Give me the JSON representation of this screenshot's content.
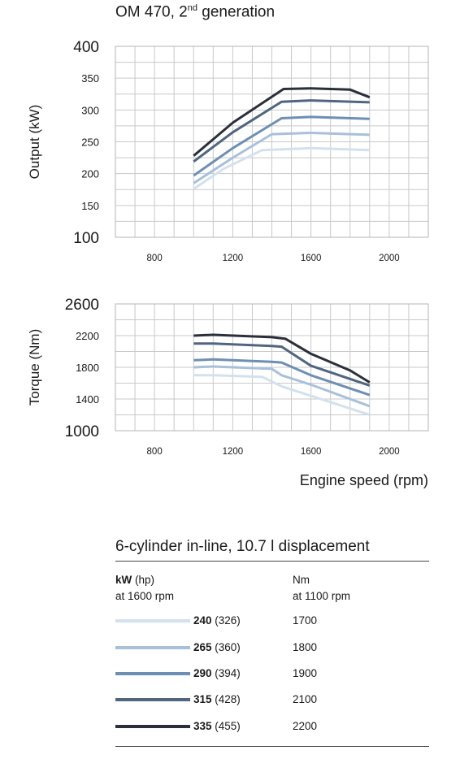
{
  "title": {
    "main": "OM 470, 2",
    "sup": "nd",
    "rest": " generation"
  },
  "chart_data": [
    {
      "type": "line",
      "ylabel": "Output (kW)",
      "xlabel": "",
      "xlim": [
        600,
        2200
      ],
      "ylim": [
        100,
        400
      ],
      "xticks": [
        800,
        1200,
        1600,
        2000
      ],
      "yticks": [
        100,
        150,
        200,
        250,
        300,
        350,
        400
      ],
      "grid": true,
      "series": [
        {
          "name": "240 (326)",
          "x": [
            1000,
            1150,
            1350,
            1600,
            1900
          ],
          "y": [
            176,
            207,
            237,
            240,
            237
          ],
          "color": "#d3e1ee"
        },
        {
          "name": "265 (360)",
          "x": [
            1000,
            1200,
            1400,
            1600,
            1900
          ],
          "y": [
            185,
            225,
            262,
            264,
            261
          ],
          "color": "#a8c0da"
        },
        {
          "name": "290 (394)",
          "x": [
            1000,
            1200,
            1450,
            1600,
            1900
          ],
          "y": [
            197,
            240,
            287,
            289,
            286
          ],
          "color": "#6e8fb4"
        },
        {
          "name": "315 (428)",
          "x": [
            1000,
            1200,
            1450,
            1600,
            1900
          ],
          "y": [
            219,
            265,
            313,
            315,
            312
          ],
          "color": "#50657f"
        },
        {
          "name": "335 (455)",
          "x": [
            1000,
            1200,
            1460,
            1600,
            1800,
            1900
          ],
          "y": [
            228,
            280,
            333,
            334,
            332,
            320
          ],
          "color": "#2a2f3a"
        }
      ]
    },
    {
      "type": "line",
      "ylabel": "Torque (Nm)",
      "xlabel": "Engine speed (rpm)",
      "xlim": [
        600,
        2200
      ],
      "ylim": [
        1000,
        2600
      ],
      "xticks": [
        800,
        1200,
        1600,
        2000
      ],
      "yticks": [
        1000,
        1400,
        1800,
        2200,
        2600
      ],
      "grid": true,
      "series": [
        {
          "name": "240 (326)",
          "x": [
            1000,
            1100,
            1350,
            1450,
            1600,
            1900
          ],
          "y": [
            1700,
            1700,
            1680,
            1560,
            1440,
            1200
          ],
          "color": "#d3e1ee"
        },
        {
          "name": "265 (360)",
          "x": [
            1000,
            1100,
            1400,
            1450,
            1600,
            1900
          ],
          "y": [
            1800,
            1810,
            1780,
            1700,
            1580,
            1310
          ],
          "color": "#a8c0da"
        },
        {
          "name": "290 (394)",
          "x": [
            1000,
            1100,
            1400,
            1450,
            1600,
            1900
          ],
          "y": [
            1890,
            1900,
            1870,
            1860,
            1700,
            1450
          ],
          "color": "#6e8fb4"
        },
        {
          "name": "315 (428)",
          "x": [
            1000,
            1100,
            1400,
            1450,
            1600,
            1900
          ],
          "y": [
            2100,
            2100,
            2070,
            2060,
            1820,
            1570
          ],
          "color": "#50657f"
        },
        {
          "name": "335 (455)",
          "x": [
            1000,
            1100,
            1400,
            1470,
            1600,
            1800,
            1900
          ],
          "y": [
            2200,
            2210,
            2180,
            2160,
            1970,
            1760,
            1610
          ],
          "color": "#2a2f3a"
        }
      ]
    }
  ],
  "specs": {
    "title": "6-cylinder in-line, 10.7 l displacement",
    "kw_header_bold": "kW",
    "kw_header_rest": " (hp)",
    "kw_header_sub": "at 1600 rpm",
    "nm_header": "Nm",
    "nm_header_sub": "at 1100 rpm",
    "rows": [
      {
        "kw": "240",
        "hp": " (326)",
        "nm": "1700",
        "color": "#d3e1ee"
      },
      {
        "kw": "265",
        "hp": " (360)",
        "nm": "1800",
        "color": "#a8c0da"
      },
      {
        "kw": "290",
        "hp": " (394)",
        "nm": "1900",
        "color": "#6e8fb4"
      },
      {
        "kw": "315",
        "hp": " (428)",
        "nm": "2100",
        "color": "#50657f"
      },
      {
        "kw": "335",
        "hp": " (455)",
        "nm": "2200",
        "color": "#2a2f3a"
      }
    ]
  }
}
